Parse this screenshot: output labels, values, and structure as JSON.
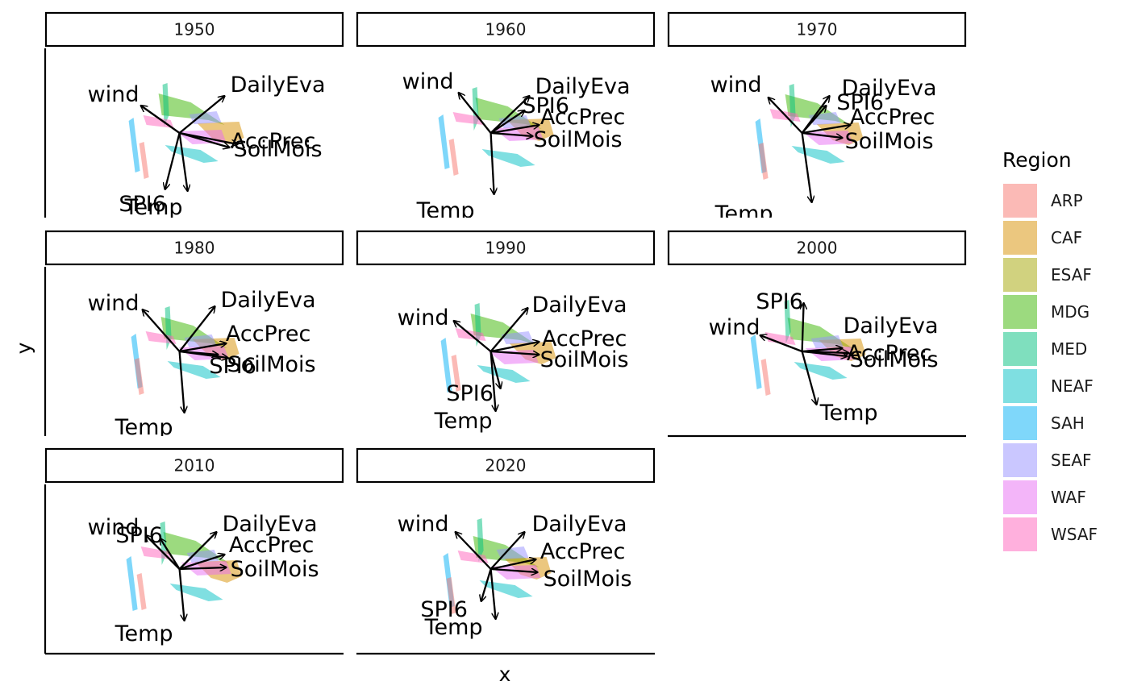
{
  "chart_data": {
    "type": "faceted-biplot",
    "xlabel": "x",
    "ylabel": "y",
    "legend": {
      "title": "Region",
      "position": "right",
      "items": [
        {
          "label": "ARP",
          "color": "#F8766D"
        },
        {
          "label": "CAF",
          "color": "#D89000"
        },
        {
          "label": "ESAF",
          "color": "#A3A500"
        },
        {
          "label": "MDG",
          "color": "#39B600"
        },
        {
          "label": "MED",
          "color": "#00BF7D"
        },
        {
          "label": "NEAF",
          "color": "#00BFC4"
        },
        {
          "label": "SAH",
          "color": "#00B0F6"
        },
        {
          "label": "SEAF",
          "color": "#9590FF"
        },
        {
          "label": "WAF",
          "color": "#E76BF3"
        },
        {
          "label": "WSAF",
          "color": "#FF62BC"
        }
      ]
    },
    "panels": [
      {
        "label": "1950",
        "arrows": [
          {
            "name": "wind",
            "dx": -0.48,
            "dy": 0.34,
            "lx": -0.82,
            "ly": 0.48
          },
          {
            "name": "DailyEva",
            "dx": 0.56,
            "dy": 0.46,
            "lx": 1.22,
            "ly": 0.6
          },
          {
            "name": "AccPrec",
            "dx": 0.72,
            "dy": -0.14,
            "lx": 1.16,
            "ly": -0.1
          },
          {
            "name": "SoilMois",
            "dx": 0.62,
            "dy": -0.18,
            "lx": 1.22,
            "ly": -0.2
          },
          {
            "name": "SPI6",
            "dx": -0.18,
            "dy": -0.7,
            "lx": -0.46,
            "ly": -0.88
          },
          {
            "name": "Temp",
            "dx": 0.1,
            "dy": -0.72,
            "lx": -0.32,
            "ly": -0.92
          }
        ]
      },
      {
        "label": "1960",
        "arrows": [
          {
            "name": "wind",
            "dx": -0.4,
            "dy": 0.5,
            "lx": -0.78,
            "ly": 0.64
          },
          {
            "name": "DailyEva",
            "dx": 0.48,
            "dy": 0.46,
            "lx": 1.14,
            "ly": 0.58
          },
          {
            "name": "SPI6",
            "dx": 0.42,
            "dy": 0.28,
            "lx": 0.68,
            "ly": 0.34
          },
          {
            "name": "AccPrec",
            "dx": 0.6,
            "dy": 0.1,
            "lx": 1.14,
            "ly": 0.2
          },
          {
            "name": "SoilMois",
            "dx": 0.52,
            "dy": -0.04,
            "lx": 1.08,
            "ly": -0.08
          },
          {
            "name": "Temp",
            "dx": 0.04,
            "dy": -0.76,
            "lx": -0.56,
            "ly": -0.96
          }
        ]
      },
      {
        "label": "1970",
        "arrows": [
          {
            "name": "wind",
            "dx": -0.42,
            "dy": 0.44,
            "lx": -0.82,
            "ly": 0.6
          },
          {
            "name": "DailyEva",
            "dx": 0.34,
            "dy": 0.46,
            "lx": 1.08,
            "ly": 0.56
          },
          {
            "name": "SPI6",
            "dx": 0.3,
            "dy": 0.34,
            "lx": 0.72,
            "ly": 0.38
          },
          {
            "name": "AccPrec",
            "dx": 0.6,
            "dy": 0.1,
            "lx": 1.12,
            "ly": 0.2
          },
          {
            "name": "SoilMois",
            "dx": 0.5,
            "dy": -0.06,
            "lx": 1.08,
            "ly": -0.1
          },
          {
            "name": "Temp",
            "dx": 0.12,
            "dy": -0.86,
            "lx": -0.72,
            "ly": -1.0
          }
        ]
      },
      {
        "label": "1980",
        "arrows": [
          {
            "name": "wind",
            "dx": -0.46,
            "dy": 0.52,
            "lx": -0.82,
            "ly": 0.6
          },
          {
            "name": "DailyEva",
            "dx": 0.44,
            "dy": 0.56,
            "lx": 1.1,
            "ly": 0.64
          },
          {
            "name": "AccPrec",
            "dx": 0.58,
            "dy": 0.1,
            "lx": 1.1,
            "ly": 0.22
          },
          {
            "name": "SoilMois",
            "dx": 0.6,
            "dy": -0.08,
            "lx": 1.14,
            "ly": -0.16
          },
          {
            "name": "SPI6",
            "dx": 0.48,
            "dy": -0.04,
            "lx": 0.66,
            "ly": -0.18
          },
          {
            "name": "Temp",
            "dx": 0.06,
            "dy": -0.76,
            "lx": -0.44,
            "ly": -0.94
          }
        ]
      },
      {
        "label": "1990",
        "arrows": [
          {
            "name": "wind",
            "dx": -0.46,
            "dy": 0.38,
            "lx": -0.84,
            "ly": 0.42
          },
          {
            "name": "DailyEva",
            "dx": 0.46,
            "dy": 0.54,
            "lx": 1.1,
            "ly": 0.58
          },
          {
            "name": "AccPrec",
            "dx": 0.6,
            "dy": 0.12,
            "lx": 1.16,
            "ly": 0.16
          },
          {
            "name": "SoilMois",
            "dx": 0.6,
            "dy": -0.04,
            "lx": 1.16,
            "ly": -0.1
          },
          {
            "name": "SPI6",
            "dx": 0.12,
            "dy": -0.46,
            "lx": -0.26,
            "ly": -0.52
          },
          {
            "name": "Temp",
            "dx": 0.06,
            "dy": -0.74,
            "lx": -0.34,
            "ly": -0.86
          }
        ]
      },
      {
        "label": "2000",
        "arrows": [
          {
            "name": "SPI6",
            "dx": 0.02,
            "dy": 0.6,
            "lx": -0.28,
            "ly": 0.62
          },
          {
            "name": "wind",
            "dx": -0.52,
            "dy": 0.2,
            "lx": -0.84,
            "ly": 0.3
          },
          {
            "name": "DailyEva",
            "dx": 0.5,
            "dy": 0.04,
            "lx": 1.1,
            "ly": 0.32
          },
          {
            "name": "AccPrec",
            "dx": 0.58,
            "dy": -0.02,
            "lx": 1.08,
            "ly": -0.02
          },
          {
            "name": "SoilMois",
            "dx": 0.56,
            "dy": -0.06,
            "lx": 1.14,
            "ly": -0.1
          },
          {
            "name": "Temp",
            "dx": 0.18,
            "dy": -0.66,
            "lx": 0.58,
            "ly": -0.76
          }
        ]
      },
      {
        "label": "2010",
        "arrows": [
          {
            "name": "wind",
            "dx": -0.42,
            "dy": 0.42,
            "lx": -0.82,
            "ly": 0.52
          },
          {
            "name": "SPI6",
            "dx": -0.24,
            "dy": 0.38,
            "lx": -0.5,
            "ly": 0.42
          },
          {
            "name": "DailyEva",
            "dx": 0.46,
            "dy": 0.46,
            "lx": 1.12,
            "ly": 0.56
          },
          {
            "name": "AccPrec",
            "dx": 0.56,
            "dy": 0.18,
            "lx": 1.14,
            "ly": 0.3
          },
          {
            "name": "SoilMois",
            "dx": 0.58,
            "dy": 0.02,
            "lx": 1.18,
            "ly": 0.0
          },
          {
            "name": "Temp",
            "dx": 0.06,
            "dy": -0.64,
            "lx": -0.44,
            "ly": -0.8
          }
        ]
      },
      {
        "label": "2020",
        "arrows": [
          {
            "name": "wind",
            "dx": -0.44,
            "dy": 0.46,
            "lx": -0.84,
            "ly": 0.56
          },
          {
            "name": "DailyEva",
            "dx": 0.42,
            "dy": 0.46,
            "lx": 1.1,
            "ly": 0.56
          },
          {
            "name": "AccPrec",
            "dx": 0.56,
            "dy": 0.12,
            "lx": 1.14,
            "ly": 0.22
          },
          {
            "name": "SoilMois",
            "dx": 0.58,
            "dy": -0.04,
            "lx": 1.2,
            "ly": -0.12
          },
          {
            "name": "SPI6",
            "dx": -0.12,
            "dy": -0.4,
            "lx": -0.58,
            "ly": -0.5
          },
          {
            "name": "Temp",
            "dx": 0.06,
            "dy": -0.62,
            "lx": -0.46,
            "ly": -0.72
          }
        ]
      }
    ]
  }
}
